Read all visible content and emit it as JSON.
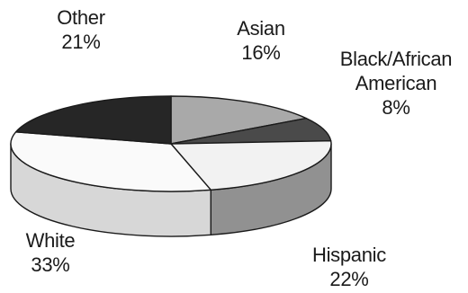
{
  "chart_data": {
    "type": "pie",
    "style": "3d",
    "title": "",
    "slices": [
      {
        "label": "Asian",
        "value": 16,
        "display": "16%",
        "color": "#a9a9a9"
      },
      {
        "label": "Black/African American",
        "label_lines": [
          "Black/African",
          "American"
        ],
        "value": 8,
        "display": "8%",
        "color": "#4a4a4a"
      },
      {
        "label": "Hispanic",
        "value": 22,
        "display": "22%",
        "color": "#f2f2f2"
      },
      {
        "label": "White",
        "value": 33,
        "display": "33%",
        "color": "#fafafa"
      },
      {
        "label": "Other",
        "value": 21,
        "display": "21%",
        "color": "#262626"
      }
    ],
    "legend": "none"
  }
}
